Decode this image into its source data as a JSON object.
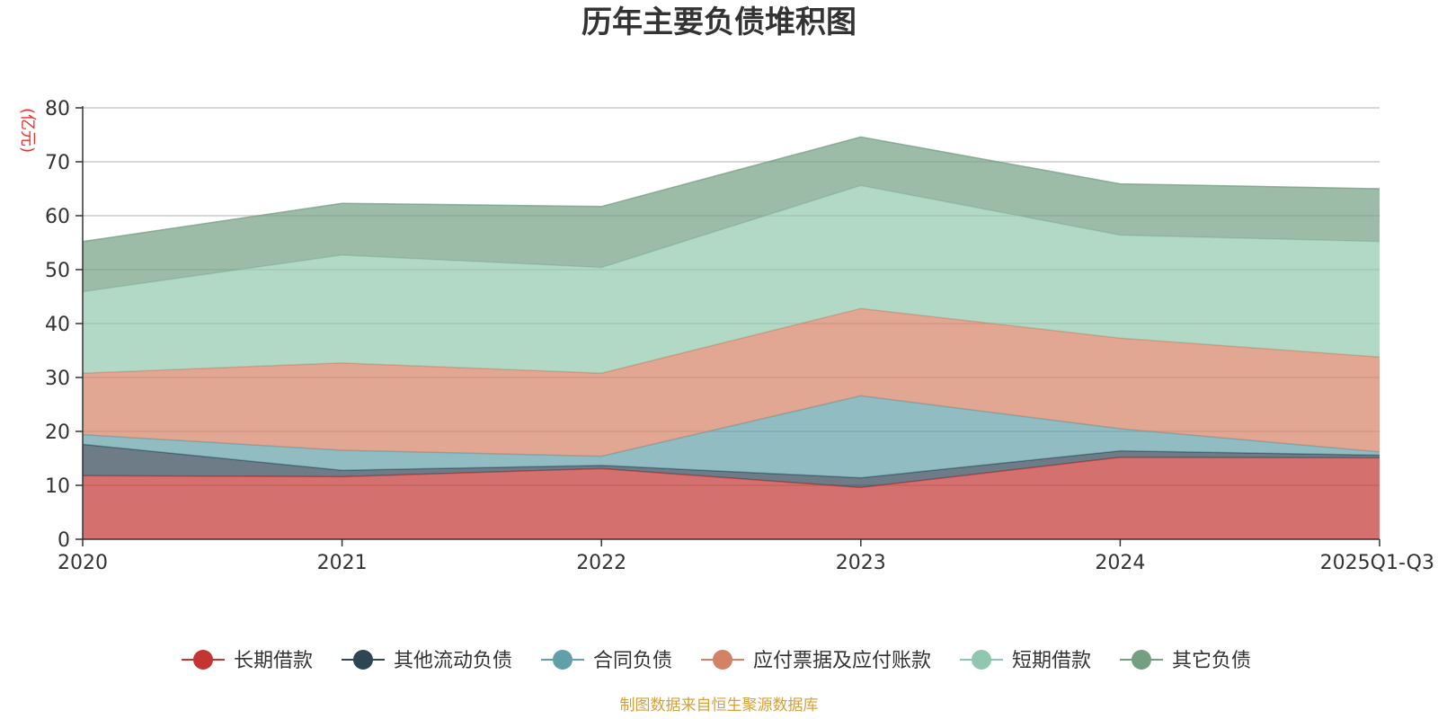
{
  "chart_data": {
    "type": "area",
    "stacked": true,
    "title": "历年主要负债堆积图",
    "unit_label": "(亿元)",
    "xlabel": "",
    "ylabel": "亿元",
    "ylim": [
      0,
      80
    ],
    "yticks": [
      0,
      10,
      20,
      30,
      40,
      50,
      60,
      70,
      80
    ],
    "grid": true,
    "legend_position": "bottom",
    "categories": [
      "2020",
      "2021",
      "2022",
      "2023",
      "2024",
      "2025Q1-Q3"
    ],
    "series": [
      {
        "name": "长期借款",
        "color": "#c23531",
        "values": [
          11.8,
          11.6,
          13.1,
          9.6,
          15.2,
          15.1
        ]
      },
      {
        "name": "其他流动负债",
        "color": "#2f4554",
        "values": [
          5.8,
          1.2,
          0.6,
          1.8,
          1.2,
          0.5
        ]
      },
      {
        "name": "合同负债",
        "color": "#61a0a8",
        "values": [
          1.8,
          3.7,
          1.7,
          15.2,
          4.1,
          0.6
        ]
      },
      {
        "name": "应付票据及应付账款",
        "color": "#d48265",
        "values": [
          11.4,
          16.2,
          15.4,
          16.2,
          16.8,
          17.6
        ]
      },
      {
        "name": "短期借款",
        "color": "#91c7ae",
        "values": [
          15.1,
          20.0,
          19.6,
          22.8,
          19.1,
          21.4
        ]
      },
      {
        "name": "其它负债",
        "color": "#749f83",
        "values": [
          9.3,
          9.6,
          11.3,
          9.0,
          9.5,
          9.8
        ]
      }
    ]
  },
  "source_note": "制图数据来自恒生聚源数据库"
}
